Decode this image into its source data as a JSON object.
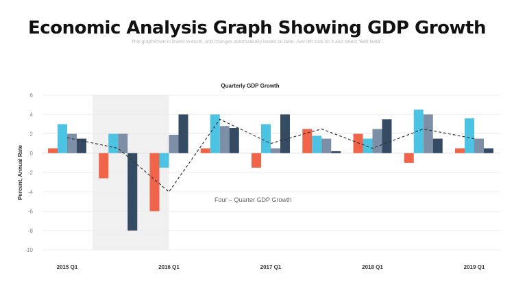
{
  "title": "Economic Analysis Graph Showing GDP Growth",
  "subtitle": "This graph/chart is linked to excel, and changes automatically based on data. Just left click on it and select \"Edit Data\".",
  "chart_data": {
    "type": "bar",
    "title": "Quarterly GDP Growth",
    "ylabel": "Percent, Annual Rate",
    "xlabel": "",
    "ylim": [
      -10,
      6
    ],
    "yticks": [
      6,
      4,
      2,
      0,
      -2,
      -4,
      -6,
      -8,
      -10
    ],
    "x_tick_labels": [
      "2015 Q1",
      "",
      "2016 Q1",
      "",
      "2017 Q1",
      "",
      "2018 Q1",
      "",
      "2019 Q1"
    ],
    "grid": true,
    "shaded_range_groups": [
      0.5,
      2
    ],
    "series": [
      {
        "color": "#F0644A",
        "values": [
          0.5,
          -2.6,
          -6,
          0.5,
          -1.5,
          2.5,
          2,
          -1,
          0.5
        ]
      },
      {
        "color": "#4DC3E3",
        "values": [
          3,
          2,
          -1.5,
          4,
          3,
          1.8,
          1.5,
          4.5,
          3.6
        ]
      },
      {
        "color": "#7C8FA6",
        "values": [
          2,
          2,
          1.9,
          2.8,
          0.5,
          1.5,
          2.5,
          4,
          1.5
        ]
      },
      {
        "color": "#354A63",
        "values": [
          1.5,
          -8,
          4,
          2.6,
          4,
          0.2,
          3.5,
          1.5,
          0.5
        ]
      }
    ],
    "line": {
      "name": "Four – Quarter GDP Growth",
      "style": "dashed",
      "color": "#333333",
      "values": [
        1.6,
        0.5,
        -4,
        3.5,
        1,
        2.5,
        0.5,
        2.5,
        1.5
      ]
    }
  }
}
